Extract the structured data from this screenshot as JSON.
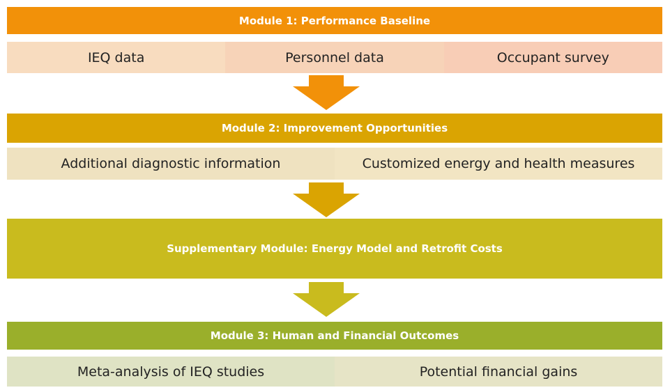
{
  "modules": [
    {
      "title": "Module 1: Performance Baseline",
      "items": [
        "IEQ data",
        "Personnel data",
        "Occupant survey"
      ]
    },
    {
      "title": "Module 2: Improvement Opportunities",
      "items": [
        "Additional diagnostic information",
        "Customized energy and health measures"
      ]
    },
    {
      "title": "Supplementary Module: Energy Model and Retrofit Costs",
      "items": []
    },
    {
      "title": "Module 3: Human and Financial Outcomes",
      "items": [
        "Meta-analysis of IEQ studies",
        "Potential financial gains"
      ]
    }
  ]
}
